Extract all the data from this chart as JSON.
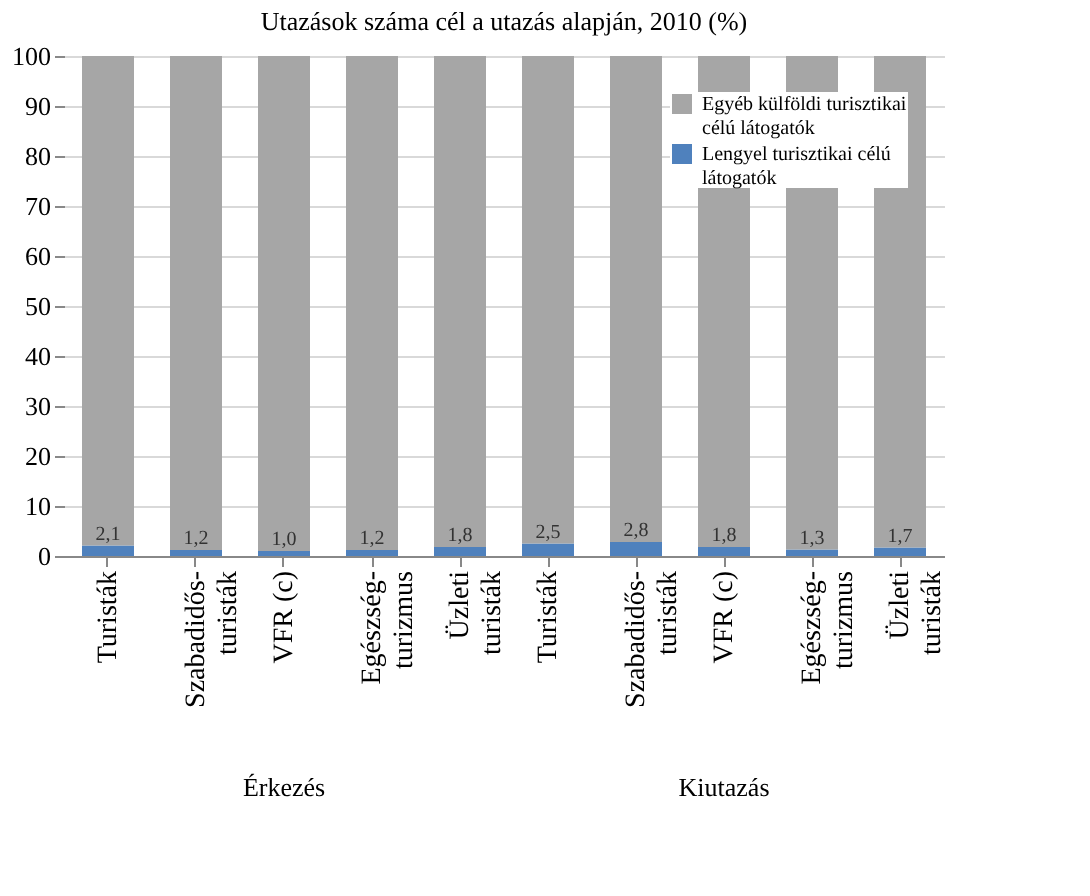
{
  "chart_data": {
    "type": "bar",
    "stacked": true,
    "title": "Utazások száma cél a utazás alapján, 2010 (%)",
    "categories": [
      "Turisták",
      "Szabadidős-\nturisták",
      "VFR (c)",
      "Egészség-\nturizmus",
      "Üzleti\nturisták",
      "Turisták",
      "Szabadidős-\nturisták",
      "VFR (c)",
      "Egészség-\nturizmus",
      "Üzleti\nturisták"
    ],
    "series": [
      {
        "name": "Lengyel turisztikai célú látogatók",
        "color": "#4f81bd",
        "values": [
          2.1,
          1.2,
          1.0,
          1.2,
          1.8,
          2.5,
          2.8,
          1.8,
          1.3,
          1.7
        ],
        "value_labels": [
          "2,1",
          "1,2",
          "1,0",
          "1,2",
          "1,8",
          "2,5",
          "2,8",
          "1,8",
          "1,3",
          "1,7"
        ]
      },
      {
        "name": "Egyéb külföldi turisztikai célú látogatók",
        "color": "#a6a6a6",
        "values": [
          97.9,
          98.8,
          99.0,
          98.8,
          98.2,
          97.5,
          97.2,
          98.2,
          98.7,
          98.3
        ]
      }
    ],
    "annotations": [
      "Érkezés",
      "Kiutazás"
    ],
    "ylim": [
      0,
      100
    ],
    "yticks": [
      0,
      10,
      20,
      30,
      40,
      50,
      60,
      70,
      80,
      90,
      100
    ],
    "grid": "y",
    "legend": "top right"
  }
}
